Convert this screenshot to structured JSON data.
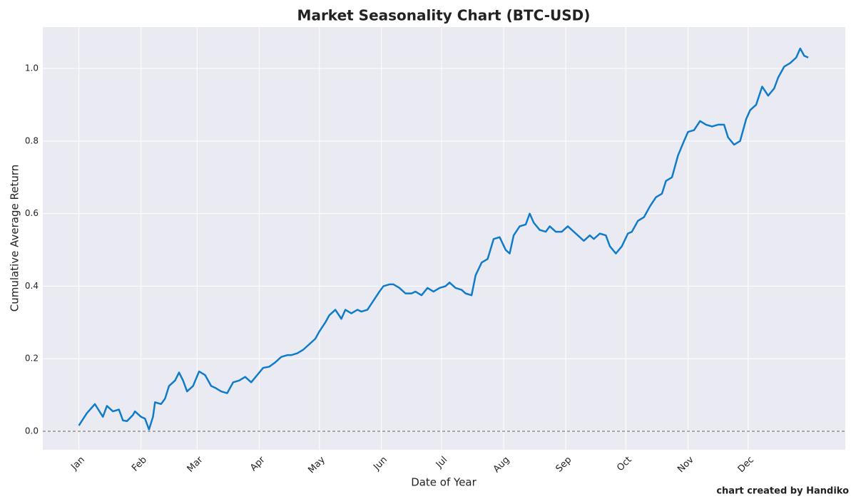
{
  "chart_data": {
    "type": "line",
    "title": "Market Seasonality Chart (BTC-USD)",
    "x_label": "Date of Year",
    "y_label": "Cumulative Average Return",
    "credit": "chart created by Handiko",
    "x": [
      1,
      5,
      9,
      13,
      15,
      18,
      21,
      23,
      25,
      28,
      29,
      32,
      34,
      36,
      38,
      39,
      42,
      44,
      46,
      49,
      51,
      53,
      55,
      58,
      61,
      64,
      67,
      69,
      72,
      75,
      78,
      81,
      84,
      87,
      90,
      93,
      96,
      99,
      102,
      105,
      107,
      110,
      113,
      116,
      119,
      121,
      124,
      126,
      129,
      132,
      134,
      137,
      140,
      142,
      145,
      148,
      151,
      153,
      156,
      158,
      161,
      164,
      167,
      169,
      172,
      175,
      178,
      181,
      184,
      186,
      189,
      192,
      194,
      197,
      199,
      202,
      205,
      208,
      211,
      214,
      216,
      218,
      221,
      224,
      226,
      228,
      231,
      234,
      236,
      239,
      242,
      245,
      248,
      251,
      253,
      256,
      258,
      261,
      264,
      266,
      269,
      272,
      275,
      277,
      280,
      283,
      286,
      289,
      292,
      294,
      297,
      300,
      303,
      305,
      308,
      311,
      314,
      317,
      320,
      323,
      325,
      328,
      331,
      334,
      336,
      339,
      342,
      345,
      348,
      350,
      353,
      356,
      359,
      361,
      363,
      365
    ],
    "values": [
      0.016,
      0.05,
      0.075,
      0.04,
      0.07,
      0.055,
      0.06,
      0.03,
      0.028,
      0.045,
      0.055,
      0.04,
      0.035,
      0.005,
      0.04,
      0.08,
      0.075,
      0.09,
      0.125,
      0.14,
      0.162,
      0.14,
      0.11,
      0.125,
      0.165,
      0.155,
      0.125,
      0.12,
      0.11,
      0.105,
      0.135,
      0.14,
      0.15,
      0.135,
      0.155,
      0.175,
      0.178,
      0.19,
      0.205,
      0.21,
      0.21,
      0.215,
      0.225,
      0.24,
      0.255,
      0.275,
      0.3,
      0.32,
      0.335,
      0.31,
      0.335,
      0.325,
      0.335,
      0.33,
      0.335,
      0.36,
      0.385,
      0.4,
      0.405,
      0.405,
      0.395,
      0.38,
      0.38,
      0.385,
      0.375,
      0.395,
      0.385,
      0.395,
      0.4,
      0.41,
      0.395,
      0.39,
      0.38,
      0.375,
      0.43,
      0.465,
      0.475,
      0.53,
      0.535,
      0.5,
      0.49,
      0.54,
      0.565,
      0.57,
      0.6,
      0.575,
      0.555,
      0.55,
      0.565,
      0.55,
      0.55,
      0.565,
      0.55,
      0.535,
      0.525,
      0.54,
      0.53,
      0.545,
      0.54,
      0.51,
      0.49,
      0.51,
      0.545,
      0.55,
      0.58,
      0.59,
      0.62,
      0.645,
      0.655,
      0.69,
      0.7,
      0.76,
      0.8,
      0.825,
      0.83,
      0.855,
      0.845,
      0.84,
      0.845,
      0.845,
      0.81,
      0.79,
      0.8,
      0.86,
      0.885,
      0.9,
      0.95,
      0.925,
      0.945,
      0.975,
      1.005,
      1.015,
      1.03,
      1.055,
      1.035,
      1.03
    ],
    "color": "#0f7bcb",
    "xlim": [
      -17,
      383.5
    ],
    "xticks": [
      {
        "value": 1,
        "label": "Jan"
      },
      {
        "value": 32,
        "label": "Feb"
      },
      {
        "value": 60,
        "label": "Mar"
      },
      {
        "value": 91,
        "label": "Apr"
      },
      {
        "value": 121,
        "label": "May"
      },
      {
        "value": 152,
        "label": "Jun"
      },
      {
        "value": 182,
        "label": "Jul"
      },
      {
        "value": 213,
        "label": "Aug"
      },
      {
        "value": 244,
        "label": "Sep"
      },
      {
        "value": 274,
        "label": "Oct"
      },
      {
        "value": 305,
        "label": "Nov"
      },
      {
        "value": 335,
        "label": "Dec"
      }
    ],
    "ylim": [
      -0.051,
      1.114
    ],
    "yticks": [
      {
        "value": 0,
        "label": "0.0"
      },
      0.2,
      0.4,
      0.6,
      0.8,
      {
        "value": 1,
        "label": "1.0"
      }
    ],
    "hline": 0,
    "grid": true
  }
}
